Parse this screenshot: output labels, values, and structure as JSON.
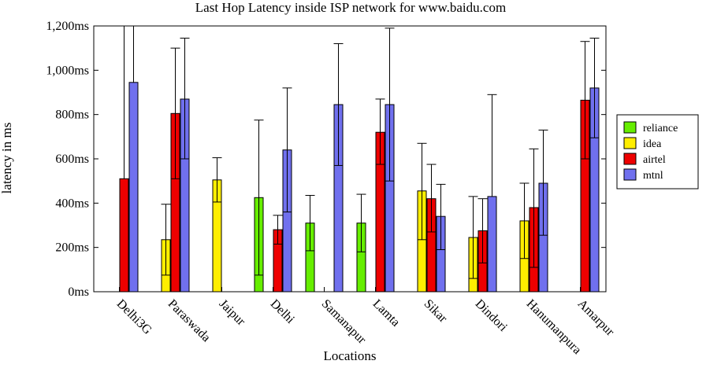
{
  "chart_data": {
    "type": "bar",
    "title": "Last Hop Latency inside ISP network for www.baidu.com",
    "xlabel": "Locations",
    "ylabel": "latency in ms",
    "ylim": [
      0,
      1200
    ],
    "yticks": [
      {
        "value": 0,
        "label": "0ms"
      },
      {
        "value": 200,
        "label": "200ms"
      },
      {
        "value": 400,
        "label": "400ms"
      },
      {
        "value": 600,
        "label": "600ms"
      },
      {
        "value": 800,
        "label": "800ms"
      },
      {
        "value": 1000,
        "label": "1,000ms"
      },
      {
        "value": 1200,
        "label": "1,200ms"
      }
    ],
    "categories": [
      "Delhi3G",
      "Paraswada",
      "Jaipur",
      "Delhi",
      "Samanapur",
      "Lamta",
      "Sikar",
      "Dindori",
      "Hanumanpura",
      "Amarpur"
    ],
    "legend_position": "right",
    "grid": false,
    "error_bars": true,
    "series": [
      {
        "name": "reliance",
        "color": "#66ee00",
        "values": [
          null,
          null,
          null,
          425,
          310,
          310,
          null,
          null,
          null,
          null
        ],
        "err_low": [
          null,
          null,
          null,
          75,
          185,
          180,
          null,
          null,
          null,
          null
        ],
        "err_high": [
          null,
          null,
          null,
          775,
          435,
          440,
          null,
          null,
          null,
          null
        ]
      },
      {
        "name": "idea",
        "color": "#ffee00",
        "values": [
          null,
          235,
          505,
          null,
          null,
          null,
          455,
          245,
          320,
          null
        ],
        "err_low": [
          null,
          75,
          405,
          null,
          null,
          null,
          235,
          60,
          150,
          null
        ],
        "err_high": [
          null,
          395,
          605,
          null,
          null,
          null,
          670,
          430,
          490,
          null
        ]
      },
      {
        "name": "airtel",
        "color": "#ee0000",
        "values": [
          510,
          805,
          null,
          280,
          null,
          720,
          420,
          275,
          380,
          865
        ],
        "err_low": [
          null,
          510,
          null,
          215,
          null,
          575,
          270,
          130,
          110,
          600
        ],
        "err_high": [
          1200,
          1100,
          null,
          345,
          null,
          870,
          575,
          420,
          645,
          1130
        ]
      },
      {
        "name": "mtnl",
        "color": "#7070ee",
        "values": [
          945,
          870,
          null,
          640,
          845,
          845,
          340,
          430,
          490,
          920
        ],
        "err_low": [
          null,
          600,
          null,
          360,
          570,
          500,
          190,
          null,
          255,
          695
        ],
        "err_high": [
          1200,
          1145,
          null,
          920,
          1120,
          1190,
          485,
          890,
          730,
          1145
        ]
      }
    ]
  }
}
